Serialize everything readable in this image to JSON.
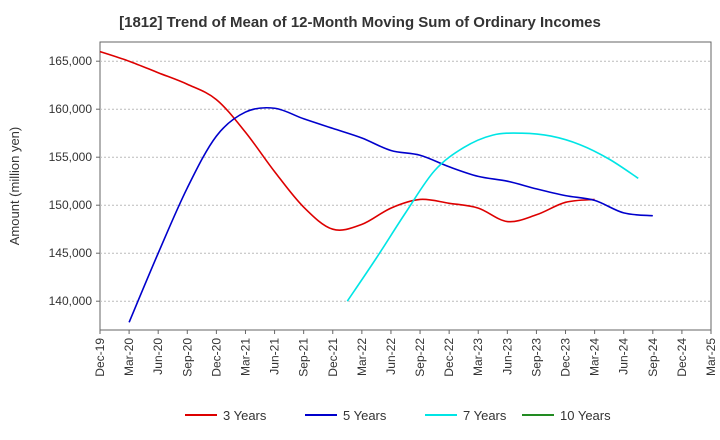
{
  "chart_data": {
    "type": "line",
    "title": "[1812]  Trend of Mean of 12-Month Moving Sum of Ordinary Incomes",
    "xlabel": "",
    "ylabel": "Amount (million yen)",
    "ylim": [
      137000,
      167000
    ],
    "yticks": [
      140000,
      145000,
      150000,
      155000,
      160000,
      165000
    ],
    "ytick_labels": [
      "140,000",
      "145,000",
      "150,000",
      "155,000",
      "160,000",
      "165,000"
    ],
    "x_index_range": [
      0,
      21
    ],
    "x_tick_labels": [
      "Dec-19",
      "Mar-20",
      "Jun-20",
      "Sep-20",
      "Dec-20",
      "Mar-21",
      "Jun-21",
      "Sep-21",
      "Dec-21",
      "Mar-22",
      "Jun-22",
      "Sep-22",
      "Dec-22",
      "Mar-23",
      "Jun-23",
      "Sep-23",
      "Dec-23",
      "Mar-24",
      "Jun-24",
      "Sep-24",
      "Dec-24",
      "Mar-25"
    ],
    "series": [
      {
        "name": "3 Years",
        "color": "#dd0000",
        "points": [
          [
            0,
            166000
          ],
          [
            1,
            165000
          ],
          [
            2,
            163800
          ],
          [
            3,
            162600
          ],
          [
            4,
            161000
          ],
          [
            5,
            157600
          ],
          [
            6,
            153500
          ],
          [
            7,
            149800
          ],
          [
            8,
            147500
          ],
          [
            9,
            148000
          ],
          [
            10,
            149700
          ],
          [
            11,
            150600
          ],
          [
            12,
            150200
          ],
          [
            13,
            149700
          ],
          [
            14,
            148300
          ],
          [
            15,
            149000
          ],
          [
            16,
            150300
          ],
          [
            17,
            150600
          ]
        ]
      },
      {
        "name": "5 Years",
        "color": "#0000cc",
        "points": [
          [
            1,
            137800
          ],
          [
            2,
            145000
          ],
          [
            3,
            151800
          ],
          [
            4,
            157200
          ],
          [
            5,
            159700
          ],
          [
            6,
            160100
          ],
          [
            7,
            159000
          ],
          [
            8,
            158000
          ],
          [
            9,
            157000
          ],
          [
            10,
            155700
          ],
          [
            11,
            155200
          ],
          [
            12,
            154000
          ],
          [
            13,
            153000
          ],
          [
            14,
            152500
          ],
          [
            15,
            151700
          ],
          [
            16,
            151000
          ],
          [
            17,
            150500
          ],
          [
            18,
            149200
          ],
          [
            19,
            148900
          ]
        ]
      },
      {
        "name": "7 Years",
        "color": "#00e5e5",
        "points": [
          [
            8.5,
            140000
          ],
          [
            9.5,
            144500
          ],
          [
            10.5,
            149200
          ],
          [
            11.5,
            153600
          ],
          [
            12.5,
            156000
          ],
          [
            13.5,
            157300
          ],
          [
            14.5,
            157500
          ],
          [
            15.5,
            157200
          ],
          [
            16.5,
            156300
          ],
          [
            17.5,
            154800
          ],
          [
            18.5,
            152800
          ]
        ]
      },
      {
        "name": "10 Years",
        "color": "#228b22",
        "points": []
      }
    ]
  }
}
